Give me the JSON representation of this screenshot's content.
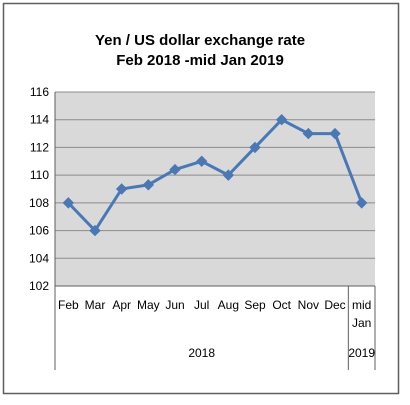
{
  "chart_data": {
    "type": "line",
    "title_line1": "Yen / US dollar exchange rate",
    "title_line2": "Feb 2018 -mid Jan 2019",
    "categories": [
      [
        "Feb"
      ],
      [
        "Mar"
      ],
      [
        "Apr"
      ],
      [
        "May"
      ],
      [
        "Jun"
      ],
      [
        "Jul"
      ],
      [
        "Aug"
      ],
      [
        "Sep"
      ],
      [
        "Oct"
      ],
      [
        "Nov"
      ],
      [
        "Dec"
      ],
      [
        "mid",
        "Jan"
      ]
    ],
    "groups": [
      {
        "label": "2018",
        "from": 0,
        "to": 10
      },
      {
        "label": "2019",
        "from": 11,
        "to": 11
      }
    ],
    "values": [
      108,
      106,
      109,
      109.3,
      110.4,
      111,
      110,
      112,
      114,
      113,
      113,
      108
    ],
    "y_ticks": [
      102,
      104,
      106,
      108,
      110,
      112,
      114,
      116
    ],
    "ylim": [
      102,
      116
    ],
    "grid": true,
    "legend": "none",
    "colors": {
      "line": "#4a78b5",
      "marker": "#4a78b5",
      "plot_bg": "#d9d9d9",
      "gridline": "#8c8c8c",
      "frame": "#5f5f5f"
    }
  }
}
